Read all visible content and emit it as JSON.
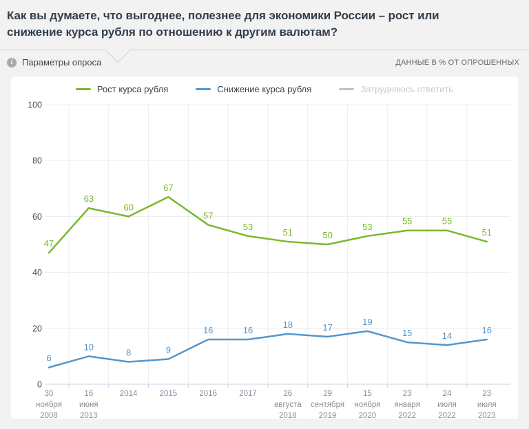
{
  "header": {
    "title": "Как вы думаете, что выгоднее, полезнее для экономики России – рост или снижение курса рубля по отношению к другим валютам?",
    "info_glyph": "i",
    "params_label": "Параметры опроса",
    "units_note": "ДАННЫЕ В % ОТ ОПРОШЕННЫХ"
  },
  "chart_data": {
    "type": "line",
    "title": "",
    "categories": [
      "30 ноября 2008",
      "16 июня 2013",
      "2014",
      "2015",
      "2016",
      "2017",
      "26 августа 2018",
      "29 сентября 2019",
      "15 ноября 2020",
      "23 января 2022",
      "24 июля 2022",
      "23 июля 2023"
    ],
    "category_label_lines": [
      [
        "30",
        "ноября",
        "2008"
      ],
      [
        "16",
        "июня",
        "2013"
      ],
      [
        "2014"
      ],
      [
        "2015"
      ],
      [
        "2016"
      ],
      [
        "2017"
      ],
      [
        "26",
        "августа",
        "2018"
      ],
      [
        "29",
        "сентября",
        "2019"
      ],
      [
        "15",
        "ноября",
        "2020"
      ],
      [
        "23",
        "января",
        "2022"
      ],
      [
        "24",
        "июля",
        "2022"
      ],
      [
        "23",
        "июля",
        "2023"
      ]
    ],
    "series": [
      {
        "name": "Рост курса рубля",
        "color": "#78b92d",
        "enabled": true,
        "values": [
          47,
          63,
          60,
          67,
          57,
          53,
          51,
          50,
          53,
          55,
          55,
          51
        ]
      },
      {
        "name": "Снижение курса рубля",
        "color": "#5596cd",
        "enabled": true,
        "values": [
          6,
          10,
          8,
          9,
          16,
          16,
          18,
          17,
          19,
          15,
          14,
          16
        ]
      },
      {
        "name": "Затрудняюсь ответить",
        "color": "#c3c3c3",
        "enabled": false,
        "values": []
      }
    ],
    "ylim": [
      0,
      100
    ],
    "yticks": [
      0,
      20,
      40,
      60,
      80,
      100
    ],
    "grid": true,
    "legend_position": "top",
    "xlabel": "",
    "ylabel": "",
    "colors": {
      "grid": "#ececec",
      "vgrid": "#ebeef2",
      "axis": "#c7d3e2",
      "y_labels": "#4b4b4b",
      "x_labels": "#8b8f94"
    }
  }
}
